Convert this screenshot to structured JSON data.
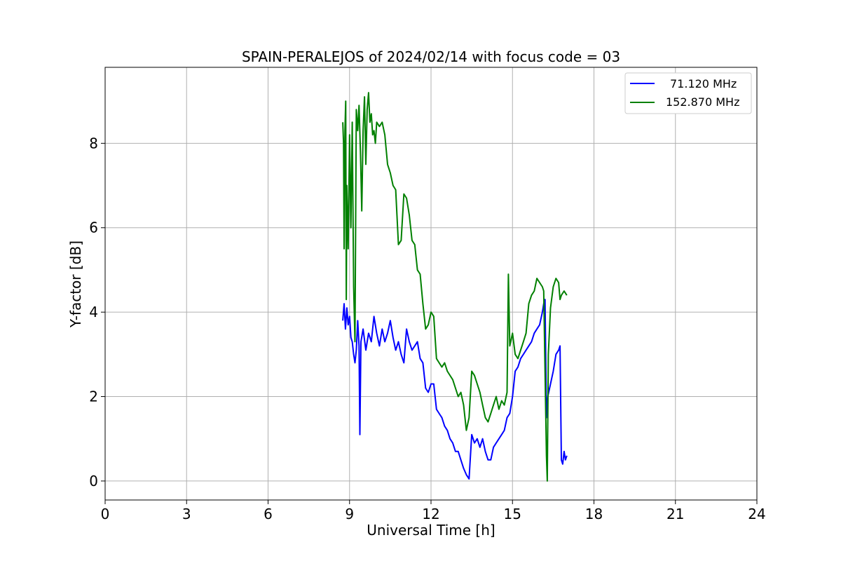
{
  "chart_data": {
    "type": "line",
    "title": "SPAIN-PERALEJOS of 2024/02/14 with focus code = 03",
    "xlabel": "Universal Time [h]",
    "ylabel": "Y-factor [dB]",
    "xlim": [
      0,
      24
    ],
    "ylim": [
      -0.45,
      9.8
    ],
    "xticks": [
      0,
      3,
      6,
      9,
      12,
      15,
      18,
      21,
      24
    ],
    "yticks": [
      0,
      2,
      4,
      6,
      8
    ],
    "grid": true,
    "legend": "top-right",
    "series": [
      {
        "name": "71.120 MHz",
        "color": "#0000ff",
        "points": [
          [
            8.75,
            3.8
          ],
          [
            8.8,
            4.2
          ],
          [
            8.85,
            3.6
          ],
          [
            8.9,
            4.1
          ],
          [
            8.95,
            3.7
          ],
          [
            9.0,
            3.9
          ],
          [
            9.05,
            3.4
          ],
          [
            9.1,
            3.3
          ],
          [
            9.15,
            3.0
          ],
          [
            9.2,
            2.8
          ],
          [
            9.25,
            3.1
          ],
          [
            9.3,
            3.8
          ],
          [
            9.35,
            3.2
          ],
          [
            9.38,
            1.1
          ],
          [
            9.42,
            3.3
          ],
          [
            9.5,
            3.6
          ],
          [
            9.6,
            3.1
          ],
          [
            9.7,
            3.5
          ],
          [
            9.8,
            3.3
          ],
          [
            9.9,
            3.9
          ],
          [
            10.0,
            3.5
          ],
          [
            10.1,
            3.2
          ],
          [
            10.2,
            3.6
          ],
          [
            10.3,
            3.3
          ],
          [
            10.4,
            3.5
          ],
          [
            10.5,
            3.8
          ],
          [
            10.6,
            3.4
          ],
          [
            10.7,
            3.1
          ],
          [
            10.8,
            3.3
          ],
          [
            10.9,
            3.0
          ],
          [
            11.0,
            2.8
          ],
          [
            11.1,
            3.6
          ],
          [
            11.2,
            3.3
          ],
          [
            11.3,
            3.1
          ],
          [
            11.4,
            3.2
          ],
          [
            11.5,
            3.3
          ],
          [
            11.6,
            2.9
          ],
          [
            11.7,
            2.8
          ],
          [
            11.8,
            2.2
          ],
          [
            11.9,
            2.1
          ],
          [
            12.0,
            2.3
          ],
          [
            12.1,
            2.3
          ],
          [
            12.2,
            1.7
          ],
          [
            12.3,
            1.6
          ],
          [
            12.4,
            1.5
          ],
          [
            12.5,
            1.3
          ],
          [
            12.6,
            1.2
          ],
          [
            12.7,
            1.0
          ],
          [
            12.8,
            0.9
          ],
          [
            12.9,
            0.7
          ],
          [
            13.0,
            0.7
          ],
          [
            13.1,
            0.5
          ],
          [
            13.2,
            0.3
          ],
          [
            13.3,
            0.15
          ],
          [
            13.4,
            0.05
          ],
          [
            13.5,
            1.1
          ],
          [
            13.6,
            0.9
          ],
          [
            13.7,
            1.0
          ],
          [
            13.8,
            0.8
          ],
          [
            13.9,
            1.0
          ],
          [
            14.0,
            0.7
          ],
          [
            14.1,
            0.5
          ],
          [
            14.2,
            0.5
          ],
          [
            14.3,
            0.8
          ],
          [
            14.4,
            0.9
          ],
          [
            14.5,
            1.0
          ],
          [
            14.6,
            1.1
          ],
          [
            14.7,
            1.2
          ],
          [
            14.8,
            1.5
          ],
          [
            14.9,
            1.6
          ],
          [
            15.0,
            2.0
          ],
          [
            15.1,
            2.6
          ],
          [
            15.2,
            2.7
          ],
          [
            15.3,
            2.9
          ],
          [
            15.4,
            3.0
          ],
          [
            15.5,
            3.1
          ],
          [
            15.6,
            3.2
          ],
          [
            15.7,
            3.3
          ],
          [
            15.8,
            3.5
          ],
          [
            15.9,
            3.6
          ],
          [
            16.0,
            3.7
          ],
          [
            16.1,
            4.0
          ],
          [
            16.15,
            4.2
          ],
          [
            16.2,
            4.3
          ],
          [
            16.25,
            1.5
          ],
          [
            16.3,
            2.0
          ],
          [
            16.4,
            2.3
          ],
          [
            16.5,
            2.6
          ],
          [
            16.6,
            3.0
          ],
          [
            16.7,
            3.1
          ],
          [
            16.75,
            3.2
          ],
          [
            16.8,
            0.5
          ],
          [
            16.85,
            0.4
          ],
          [
            16.9,
            0.7
          ],
          [
            16.95,
            0.5
          ],
          [
            17.0,
            0.6
          ]
        ]
      },
      {
        "name": "152.870 MHz",
        "color": "#008000",
        "points": [
          [
            8.75,
            8.5
          ],
          [
            8.78,
            8.0
          ],
          [
            8.8,
            5.5
          ],
          [
            8.83,
            8.3
          ],
          [
            8.86,
            9.0
          ],
          [
            8.88,
            4.3
          ],
          [
            8.9,
            7.0
          ],
          [
            8.95,
            5.5
          ],
          [
            9.0,
            8.2
          ],
          [
            9.05,
            6.0
          ],
          [
            9.1,
            8.5
          ],
          [
            9.15,
            4.6
          ],
          [
            9.2,
            3.3
          ],
          [
            9.25,
            8.8
          ],
          [
            9.3,
            8.3
          ],
          [
            9.35,
            8.9
          ],
          [
            9.4,
            7.8
          ],
          [
            9.45,
            6.4
          ],
          [
            9.5,
            8.3
          ],
          [
            9.55,
            9.1
          ],
          [
            9.6,
            7.5
          ],
          [
            9.65,
            8.8
          ],
          [
            9.7,
            9.2
          ],
          [
            9.75,
            8.5
          ],
          [
            9.8,
            8.7
          ],
          [
            9.85,
            8.2
          ],
          [
            9.9,
            8.3
          ],
          [
            9.95,
            8.0
          ],
          [
            10.0,
            8.5
          ],
          [
            10.1,
            8.4
          ],
          [
            10.2,
            8.5
          ],
          [
            10.3,
            8.2
          ],
          [
            10.4,
            7.5
          ],
          [
            10.5,
            7.3
          ],
          [
            10.6,
            7.0
          ],
          [
            10.7,
            6.9
          ],
          [
            10.8,
            5.6
          ],
          [
            10.9,
            5.7
          ],
          [
            11.0,
            6.8
          ],
          [
            11.1,
            6.7
          ],
          [
            11.2,
            6.3
          ],
          [
            11.3,
            5.7
          ],
          [
            11.4,
            5.6
          ],
          [
            11.5,
            5.0
          ],
          [
            11.6,
            4.9
          ],
          [
            11.7,
            4.2
          ],
          [
            11.8,
            3.6
          ],
          [
            11.9,
            3.7
          ],
          [
            12.0,
            4.0
          ],
          [
            12.1,
            3.9
          ],
          [
            12.2,
            2.9
          ],
          [
            12.3,
            2.8
          ],
          [
            12.4,
            2.7
          ],
          [
            12.5,
            2.8
          ],
          [
            12.6,
            2.6
          ],
          [
            12.7,
            2.5
          ],
          [
            12.8,
            2.4
          ],
          [
            12.9,
            2.2
          ],
          [
            13.0,
            2.0
          ],
          [
            13.1,
            2.1
          ],
          [
            13.2,
            1.8
          ],
          [
            13.3,
            1.2
          ],
          [
            13.4,
            1.5
          ],
          [
            13.5,
            2.6
          ],
          [
            13.6,
            2.5
          ],
          [
            13.7,
            2.3
          ],
          [
            13.8,
            2.1
          ],
          [
            13.9,
            1.8
          ],
          [
            14.0,
            1.5
          ],
          [
            14.1,
            1.4
          ],
          [
            14.2,
            1.6
          ],
          [
            14.3,
            1.8
          ],
          [
            14.4,
            2.0
          ],
          [
            14.5,
            1.7
          ],
          [
            14.6,
            1.9
          ],
          [
            14.7,
            1.8
          ],
          [
            14.8,
            2.1
          ],
          [
            14.85,
            4.9
          ],
          [
            14.9,
            3.2
          ],
          [
            15.0,
            3.5
          ],
          [
            15.1,
            3.0
          ],
          [
            15.2,
            2.9
          ],
          [
            15.3,
            3.1
          ],
          [
            15.4,
            3.3
          ],
          [
            15.5,
            3.5
          ],
          [
            15.6,
            4.2
          ],
          [
            15.7,
            4.4
          ],
          [
            15.8,
            4.5
          ],
          [
            15.9,
            4.8
          ],
          [
            16.0,
            4.7
          ],
          [
            16.1,
            4.6
          ],
          [
            16.15,
            4.5
          ],
          [
            16.2,
            2.6
          ],
          [
            16.25,
            0.6
          ],
          [
            16.28,
            0.0
          ],
          [
            16.32,
            3.0
          ],
          [
            16.4,
            4.1
          ],
          [
            16.5,
            4.6
          ],
          [
            16.6,
            4.8
          ],
          [
            16.7,
            4.7
          ],
          [
            16.75,
            4.3
          ],
          [
            16.8,
            4.4
          ],
          [
            16.9,
            4.5
          ],
          [
            17.0,
            4.4
          ]
        ]
      }
    ]
  }
}
